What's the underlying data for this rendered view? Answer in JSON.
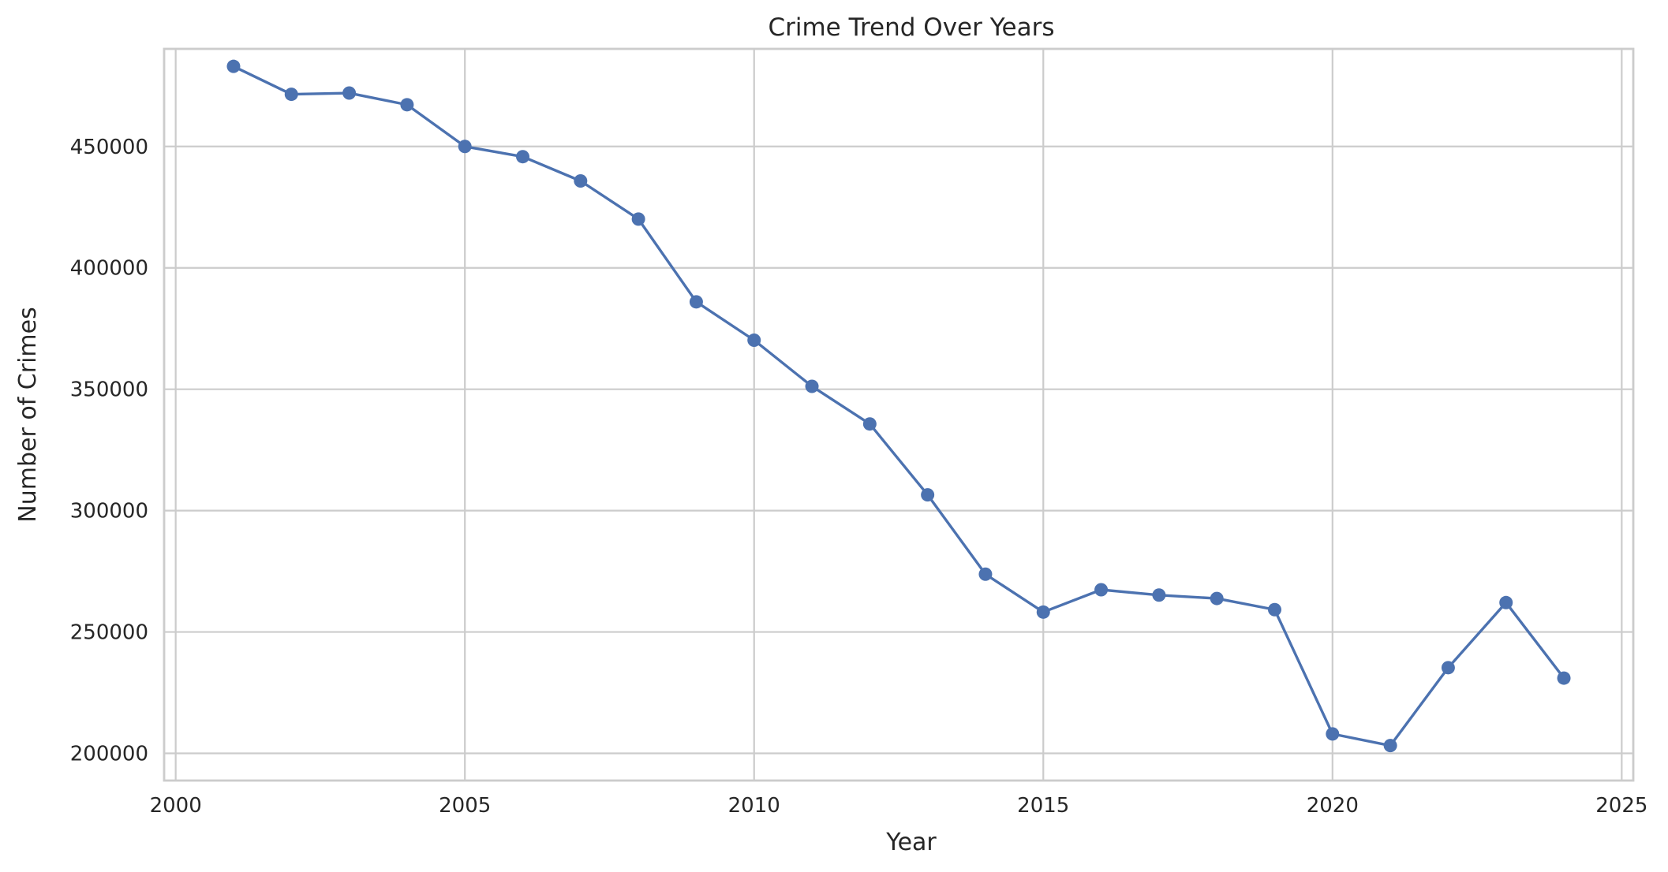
{
  "chart_data": {
    "type": "line",
    "title": "Crime Trend Over Years",
    "xlabel": "Year",
    "ylabel": "Number of Crimes",
    "xlim": [
      1999.8,
      2025.2
    ],
    "ylim": [
      188800,
      490200
    ],
    "x_ticks": [
      2000,
      2005,
      2010,
      2015,
      2020,
      2025
    ],
    "y_ticks": [
      200000,
      250000,
      300000,
      350000,
      400000,
      450000
    ],
    "grid": true,
    "legend": "none",
    "series": [
      {
        "color": "#4c72b0",
        "marker": "circle",
        "x": [
          2001,
          2002,
          2003,
          2004,
          2005,
          2006,
          2007,
          2008,
          2009,
          2010,
          2011,
          2012,
          2013,
          2014,
          2015,
          2016,
          2017,
          2018,
          2019,
          2020,
          2021,
          2022,
          2023,
          2024
        ],
        "y": [
          483000,
          471500,
          472000,
          467200,
          450000,
          445800,
          435800,
          420100,
          386000,
          370200,
          351200,
          335700,
          306500,
          273800,
          258200,
          267400,
          265200,
          263800,
          259200,
          208000,
          203200,
          235300,
          262100,
          231000
        ]
      }
    ]
  }
}
